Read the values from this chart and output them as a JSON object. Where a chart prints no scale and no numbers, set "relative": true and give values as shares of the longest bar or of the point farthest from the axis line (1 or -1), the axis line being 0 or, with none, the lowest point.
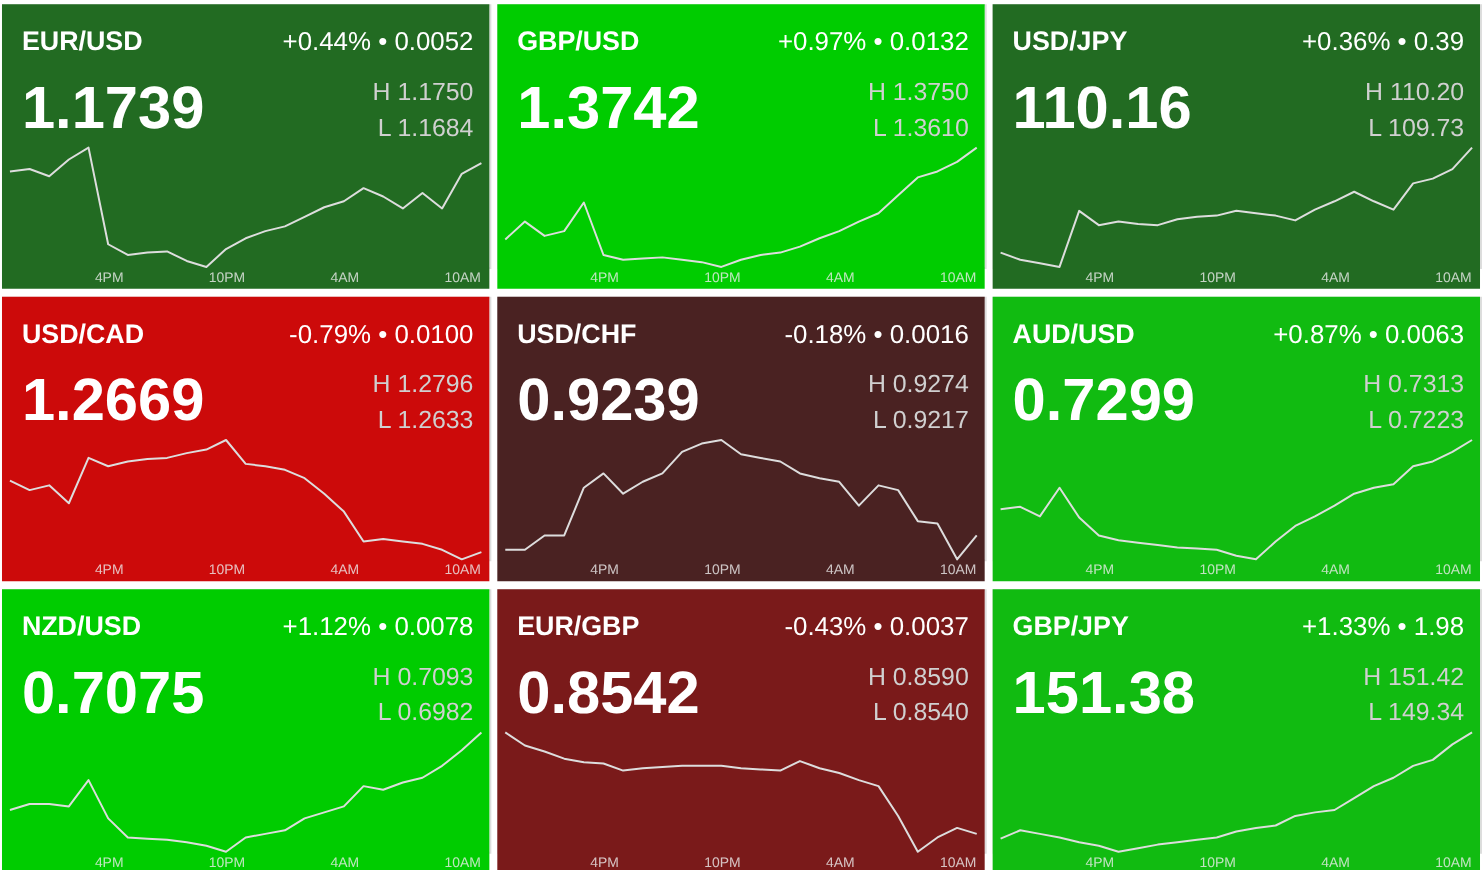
{
  "chart_data": [
    {
      "type": "line",
      "title": "EUR/USD",
      "subtitle": "1.1739",
      "annotations": [
        "+0.44% • 0.0052",
        "H 1.1750",
        "L 1.1684"
      ],
      "relative": true,
      "tick_labels": "x",
      "categories": [
        null,
        null,
        null,
        null,
        null,
        "4PM",
        null,
        null,
        null,
        null,
        null,
        "10PM",
        null,
        null,
        null,
        null,
        null,
        "4AM",
        null,
        null,
        null,
        null,
        null,
        "10AM",
        null
      ],
      "series": [
        {
          "color": "#dddddd",
          "values": [
            0.8,
            0.82,
            0.76,
            0.9,
            1.0,
            0.19,
            0.1,
            0.12,
            0.13,
            0.05,
            0,
            0.15,
            0.24,
            0.3,
            0.34,
            0.42,
            0.5,
            0.55,
            0.66,
            0.59,
            0.49,
            0.62,
            0.49,
            0.78,
            0.87
          ]
        }
      ]
    },
    {
      "type": "line",
      "title": "GBP/USD",
      "subtitle": "1.3742",
      "annotations": [
        "+0.97% • 0.0132",
        "H 1.3750",
        "L 1.3610"
      ],
      "relative": true,
      "tick_labels": "x",
      "categories": [
        null,
        null,
        null,
        null,
        null,
        "4PM",
        null,
        null,
        null,
        null,
        null,
        "10PM",
        null,
        null,
        null,
        null,
        null,
        "4AM",
        null,
        null,
        null,
        null,
        null,
        "10AM",
        null
      ],
      "series": [
        {
          "color": "#dddddd",
          "values": [
            0.23,
            0.38,
            0.26,
            0.3,
            0.54,
            0.1,
            0.06,
            0.07,
            0.08,
            0.06,
            0.04,
            0,
            0.06,
            0.1,
            0.12,
            0.17,
            0.24,
            0.3,
            0.38,
            0.45,
            0.6,
            0.75,
            0.8,
            0.88,
            1.0
          ]
        }
      ]
    },
    {
      "type": "line",
      "title": "USD/JPY",
      "subtitle": "110.16",
      "annotations": [
        "+0.36% • 0.39",
        "H 110.20",
        "L 109.73"
      ],
      "relative": true,
      "tick_labels": "x",
      "categories": [
        null,
        null,
        null,
        null,
        null,
        "4PM",
        null,
        null,
        null,
        null,
        null,
        "10PM",
        null,
        null,
        null,
        null,
        null,
        "4AM",
        null,
        null,
        null,
        null,
        null,
        "10AM",
        null
      ],
      "series": [
        {
          "color": "#dddddd",
          "values": [
            0.12,
            0.06,
            0.03,
            0,
            0.47,
            0.35,
            0.38,
            0.36,
            0.35,
            0.4,
            0.42,
            0.43,
            0.47,
            0.45,
            0.43,
            0.39,
            0.48,
            0.55,
            0.63,
            0.55,
            0.48,
            0.7,
            0.74,
            0.82,
            1.0
          ]
        }
      ]
    },
    {
      "type": "line",
      "title": "USD/CAD",
      "subtitle": "1.2669",
      "annotations": [
        "-0.79% • 0.0100",
        "H 1.2796",
        "L 1.2633"
      ],
      "relative": true,
      "tick_labels": "x",
      "categories": [
        null,
        null,
        null,
        null,
        null,
        "4PM",
        null,
        null,
        null,
        null,
        null,
        "10PM",
        null,
        null,
        null,
        null,
        null,
        "4AM",
        null,
        null,
        null,
        null,
        null,
        "10AM",
        null
      ],
      "series": [
        {
          "color": "#dddddd",
          "values": [
            0.66,
            0.58,
            0.62,
            0.47,
            0.85,
            0.78,
            0.82,
            0.84,
            0.85,
            0.89,
            0.92,
            1.0,
            0.8,
            0.78,
            0.75,
            0.68,
            0.55,
            0.4,
            0.15,
            0.17,
            0.15,
            0.13,
            0.08,
            0,
            0.06
          ]
        }
      ]
    },
    {
      "type": "line",
      "title": "USD/CHF",
      "subtitle": "0.9239",
      "annotations": [
        "-0.18% • 0.0016",
        "H 0.9274",
        "L 0.9217"
      ],
      "relative": true,
      "tick_labels": "x",
      "categories": [
        null,
        null,
        null,
        null,
        null,
        "4PM",
        null,
        null,
        null,
        null,
        null,
        "10PM",
        null,
        null,
        null,
        null,
        null,
        "4AM",
        null,
        null,
        null,
        null,
        null,
        "10AM",
        null
      ],
      "series": [
        {
          "color": "#dddddd",
          "values": [
            0.08,
            0.08,
            0.2,
            0.2,
            0.6,
            0.72,
            0.55,
            0.65,
            0.72,
            0.9,
            0.97,
            1.0,
            0.88,
            0.85,
            0.82,
            0.72,
            0.68,
            0.65,
            0.45,
            0.62,
            0.58,
            0.32,
            0.3,
            0,
            0.2
          ]
        }
      ]
    },
    {
      "type": "line",
      "title": "AUD/USD",
      "subtitle": "0.7299",
      "annotations": [
        "+0.87% • 0.0063",
        "H 0.7313",
        "L 0.7223"
      ],
      "relative": true,
      "tick_labels": "x",
      "categories": [
        null,
        null,
        null,
        null,
        null,
        "4PM",
        null,
        null,
        null,
        null,
        null,
        "10PM",
        null,
        null,
        null,
        null,
        null,
        "4AM",
        null,
        null,
        null,
        null,
        null,
        "10AM",
        null
      ],
      "series": [
        {
          "color": "#dddddd",
          "values": [
            0.42,
            0.44,
            0.36,
            0.6,
            0.35,
            0.2,
            0.16,
            0.14,
            0.12,
            0.1,
            0.09,
            0.08,
            0.03,
            0,
            0.15,
            0.28,
            0.36,
            0.45,
            0.55,
            0.6,
            0.63,
            0.78,
            0.82,
            0.9,
            1.0
          ]
        }
      ]
    },
    {
      "type": "line",
      "title": "NZD/USD",
      "subtitle": "0.7075",
      "annotations": [
        "+1.12% • 0.0078",
        "H 0.7093",
        "L 0.6982"
      ],
      "relative": true,
      "tick_labels": "x",
      "categories": [
        null,
        null,
        null,
        null,
        null,
        "4PM",
        null,
        null,
        null,
        null,
        null,
        "10PM",
        null,
        null,
        null,
        null,
        null,
        "4AM",
        null,
        null,
        null,
        null,
        null,
        "10AM",
        null
      ],
      "series": [
        {
          "color": "#dddddd",
          "values": [
            0.35,
            0.4,
            0.4,
            0.38,
            0.6,
            0.28,
            0.12,
            0.11,
            0.1,
            0.08,
            0.05,
            0,
            0.12,
            0.15,
            0.18,
            0.28,
            0.33,
            0.38,
            0.55,
            0.52,
            0.58,
            0.62,
            0.72,
            0.85,
            1.0
          ]
        }
      ]
    },
    {
      "type": "line",
      "title": "EUR/GBP",
      "subtitle": "0.8542",
      "annotations": [
        "-0.43% • 0.0037",
        "H 0.8590",
        "L 0.8540"
      ],
      "relative": true,
      "tick_labels": "x",
      "categories": [
        null,
        null,
        null,
        null,
        null,
        "4PM",
        null,
        null,
        null,
        null,
        null,
        "10PM",
        null,
        null,
        null,
        null,
        null,
        "4AM",
        null,
        null,
        null,
        null,
        null,
        "10AM",
        null
      ],
      "series": [
        {
          "color": "#dddddd",
          "values": [
            1.0,
            0.89,
            0.84,
            0.78,
            0.75,
            0.74,
            0.68,
            0.7,
            0.71,
            0.72,
            0.72,
            0.72,
            0.7,
            0.69,
            0.68,
            0.76,
            0.7,
            0.66,
            0.6,
            0.55,
            0.3,
            0,
            0.12,
            0.2,
            0.15
          ]
        }
      ]
    },
    {
      "type": "line",
      "title": "GBP/JPY",
      "subtitle": "151.38",
      "annotations": [
        "+1.33% • 1.98",
        "H 151.42",
        "L 149.34"
      ],
      "relative": true,
      "tick_labels": "x",
      "categories": [
        null,
        null,
        null,
        null,
        null,
        "4PM",
        null,
        null,
        null,
        null,
        null,
        "10PM",
        null,
        null,
        null,
        null,
        null,
        "4AM",
        null,
        null,
        null,
        null,
        null,
        "10AM",
        null
      ],
      "series": [
        {
          "color": "#dddddd",
          "values": [
            0.11,
            0.18,
            0.15,
            0.12,
            0.08,
            0.05,
            0,
            0.03,
            0.06,
            0.08,
            0.1,
            0.12,
            0.17,
            0.2,
            0.22,
            0.3,
            0.33,
            0.35,
            0.45,
            0.55,
            0.62,
            0.72,
            0.77,
            0.9,
            1.0
          ]
        }
      ]
    }
  ]
}
